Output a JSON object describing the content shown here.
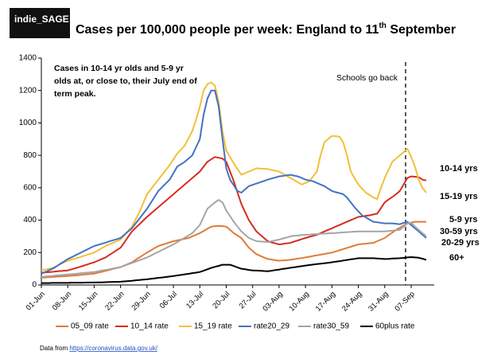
{
  "logo": "indie_SAGE",
  "source": {
    "prefix": "Data from ",
    "link": "https://coronavirus.data.gov.uk/"
  },
  "chart_data": {
    "type": "line",
    "title": "Cases per 100,000 people per week: England to 11",
    "title_sup": "th",
    "title_end": " September",
    "note": [
      "Cases in 10-14 yr olds and 5-9 yr",
      "olds at, or close to, their July end of",
      "term peak."
    ],
    "marker_label": "Schools go back",
    "categories": [
      "01-Jun",
      null,
      null,
      null,
      null,
      null,
      null,
      "08-Jun",
      null,
      null,
      null,
      null,
      null,
      null,
      "15-Jun",
      null,
      null,
      null,
      null,
      null,
      null,
      "22-Jun",
      null,
      null,
      null,
      null,
      null,
      null,
      "29-Jun",
      null,
      null,
      null,
      null,
      null,
      null,
      "06-Jul",
      null,
      null,
      null,
      null,
      null,
      null,
      "13-Jul",
      null,
      null,
      null,
      null,
      null,
      null,
      "20-Jul",
      null,
      null,
      null,
      null,
      null,
      null,
      "27-Jul",
      null,
      null,
      null,
      null,
      null,
      null,
      "03-Aug",
      null,
      null,
      null,
      null,
      null,
      null,
      "10-Aug",
      null,
      null,
      null,
      null,
      null,
      null,
      "17-Aug",
      null,
      null,
      null,
      null,
      null,
      null,
      "24-Aug",
      null,
      null,
      null,
      null,
      null,
      null,
      "31-Aug",
      null,
      null,
      null,
      null,
      null,
      null,
      "07-Sep",
      null,
      null,
      null,
      null
    ],
    "ylim": [
      0,
      1400
    ],
    "yticks": [
      0,
      200,
      400,
      600,
      800,
      1000,
      1200,
      1400
    ],
    "grid": false,
    "series": [
      {
        "name": "05_09 rate",
        "color": "#e07b39",
        "values": [
          45,
          46,
          48,
          49,
          51,
          52,
          54,
          55,
          57,
          59,
          61,
          64,
          66,
          68,
          70,
          76,
          81,
          87,
          93,
          99,
          104,
          110,
          120,
          130,
          140,
          155,
          170,
          185,
          200,
          213,
          227,
          240,
          248,
          255,
          263,
          270,
          275,
          280,
          285,
          290,
          300,
          310,
          320,
          333,
          347,
          360,
          363,
          365,
          363,
          360,
          340,
          320,
          305,
          290,
          260,
          230,
          210,
          190,
          180,
          170,
          160,
          157,
          153,
          150,
          152,
          153,
          155,
          159,
          163,
          166,
          170,
          174,
          179,
          183,
          187,
          191,
          196,
          200,
          207,
          214,
          221,
          229,
          236,
          243,
          250,
          253,
          255,
          258,
          260,
          270,
          280,
          290,
          307,
          323,
          340,
          353,
          367,
          380,
          385,
          390,
          390,
          390,
          390
        ]
      },
      {
        "name": "10_14 rate",
        "color": "#d62c1f",
        "values": [
          75,
          77,
          79,
          81,
          84,
          86,
          88,
          90,
          97,
          103,
          110,
          118,
          125,
          133,
          140,
          150,
          160,
          170,
          185,
          200,
          215,
          230,
          263,
          297,
          330,
          353,
          375,
          398,
          420,
          440,
          460,
          480,
          500,
          520,
          540,
          560,
          580,
          600,
          620,
          640,
          660,
          680,
          700,
          730,
          760,
          775,
          790,
          785,
          780,
          760,
          700,
          640,
          570,
          500,
          450,
          400,
          365,
          330,
          310,
          290,
          270,
          263,
          257,
          250,
          253,
          257,
          260,
          268,
          275,
          283,
          290,
          297,
          303,
          310,
          320,
          330,
          340,
          350,
          360,
          370,
          380,
          390,
          400,
          410,
          420,
          423,
          427,
          430,
          435,
          440,
          475,
          510,
          527,
          543,
          560,
          580,
          620,
          660,
          670,
          668,
          665,
          650,
          645
        ]
      },
      {
        "name": "15_19 rate",
        "color": "#f2c037",
        "values": [
          90,
          95,
          100,
          105,
          116,
          128,
          139,
          150,
          157,
          163,
          170,
          178,
          185,
          193,
          200,
          213,
          227,
          240,
          250,
          260,
          270,
          280,
          307,
          333,
          360,
          405,
          450,
          505,
          560,
          590,
          620,
          650,
          680,
          710,
          740,
          775,
          810,
          835,
          860,
          905,
          950,
          1020,
          1100,
          1200,
          1240,
          1250,
          1230,
          1130,
          950,
          830,
          790,
          750,
          715,
          680,
          690,
          700,
          710,
          720,
          718,
          717,
          715,
          710,
          705,
          700,
          687,
          673,
          660,
          647,
          633,
          620,
          630,
          640,
          670,
          700,
          800,
          880,
          900,
          920,
          918,
          915,
          880,
          800,
          700,
          660,
          620,
          595,
          570,
          555,
          540,
          530,
          600,
          660,
          710,
          760,
          780,
          800,
          820,
          840,
          790,
          730,
          650,
          600,
          570
        ]
      },
      {
        "name": "rate20_29",
        "color": "#4472c4",
        "values": [
          70,
          80,
          90,
          100,
          115,
          130,
          145,
          160,
          171,
          183,
          194,
          206,
          217,
          229,
          240,
          247,
          254,
          261,
          269,
          276,
          283,
          290,
          310,
          330,
          350,
          380,
          410,
          440,
          470,
          507,
          543,
          580,
          603,
          627,
          650,
          690,
          730,
          745,
          760,
          780,
          800,
          850,
          900,
          1050,
          1150,
          1200,
          1200,
          1100,
          900,
          720,
          650,
          615,
          580,
          570,
          590,
          610,
          618,
          626,
          634,
          642,
          650,
          657,
          663,
          670,
          673,
          677,
          680,
          675,
          670,
          660,
          650,
          645,
          640,
          630,
          620,
          610,
          595,
          580,
          573,
          567,
          560,
          540,
          510,
          480,
          455,
          430,
          417,
          403,
          390,
          387,
          383,
          380,
          380,
          380,
          378,
          375,
          383,
          390,
          370,
          350,
          330,
          310,
          290
        ]
      },
      {
        "name": "rate30_59",
        "color": "#a5a5a5",
        "values": [
          50,
          52,
          54,
          56,
          59,
          61,
          63,
          65,
          67,
          69,
          71,
          74,
          76,
          78,
          80,
          84,
          89,
          93,
          97,
          101,
          106,
          110,
          119,
          127,
          136,
          144,
          153,
          161,
          170,
          181,
          193,
          204,
          216,
          227,
          239,
          250,
          264,
          278,
          292,
          306,
          320,
          345,
          370,
          420,
          470,
          490,
          510,
          525,
          510,
          460,
          425,
          390,
          360,
          330,
          310,
          290,
          280,
          270,
          268,
          267,
          265,
          270,
          275,
          280,
          287,
          293,
          300,
          303,
          305,
          308,
          310,
          311,
          313,
          314,
          316,
          317,
          319,
          320,
          321,
          323,
          324,
          326,
          327,
          329,
          330,
          330,
          330,
          330,
          330,
          330,
          330,
          330,
          333,
          335,
          338,
          340,
          360,
          380,
          385,
          360,
          340,
          320,
          300
        ]
      },
      {
        "name": "60plus rate",
        "color": "#000000",
        "values": [
          12,
          12,
          12,
          13,
          13,
          13,
          13,
          13,
          14,
          14,
          14,
          14,
          15,
          15,
          15,
          16,
          16,
          17,
          18,
          19,
          19,
          20,
          22,
          24,
          26,
          29,
          31,
          33,
          35,
          38,
          41,
          44,
          46,
          49,
          52,
          55,
          59,
          62,
          66,
          69,
          73,
          76,
          80,
          88,
          97,
          105,
          112,
          118,
          125,
          125,
          125,
          117,
          108,
          100,
          97,
          93,
          90,
          89,
          88,
          86,
          85,
          88,
          92,
          95,
          99,
          102,
          106,
          109,
          113,
          116,
          120,
          123,
          126,
          129,
          131,
          134,
          137,
          140,
          144,
          147,
          151,
          154,
          158,
          161,
          165,
          165,
          165,
          165,
          165,
          163,
          162,
          160,
          161,
          163,
          164,
          165,
          167,
          170,
          172,
          170,
          168,
          162,
          155
        ]
      }
    ],
    "end_labels": [
      {
        "text": "10-14 yrs",
        "color": "#d62c1f"
      },
      {
        "text": "15-19 yrs",
        "color": "#c9a227"
      },
      {
        "text": "5-9 yrs",
        "color": "#e07b39"
      },
      {
        "text": "30-59 yrs",
        "color": "#7f7f7f"
      },
      {
        "text": "20-29 yrs",
        "color": "#4472c4"
      },
      {
        "text": "60+",
        "color": "#000000"
      }
    ]
  }
}
